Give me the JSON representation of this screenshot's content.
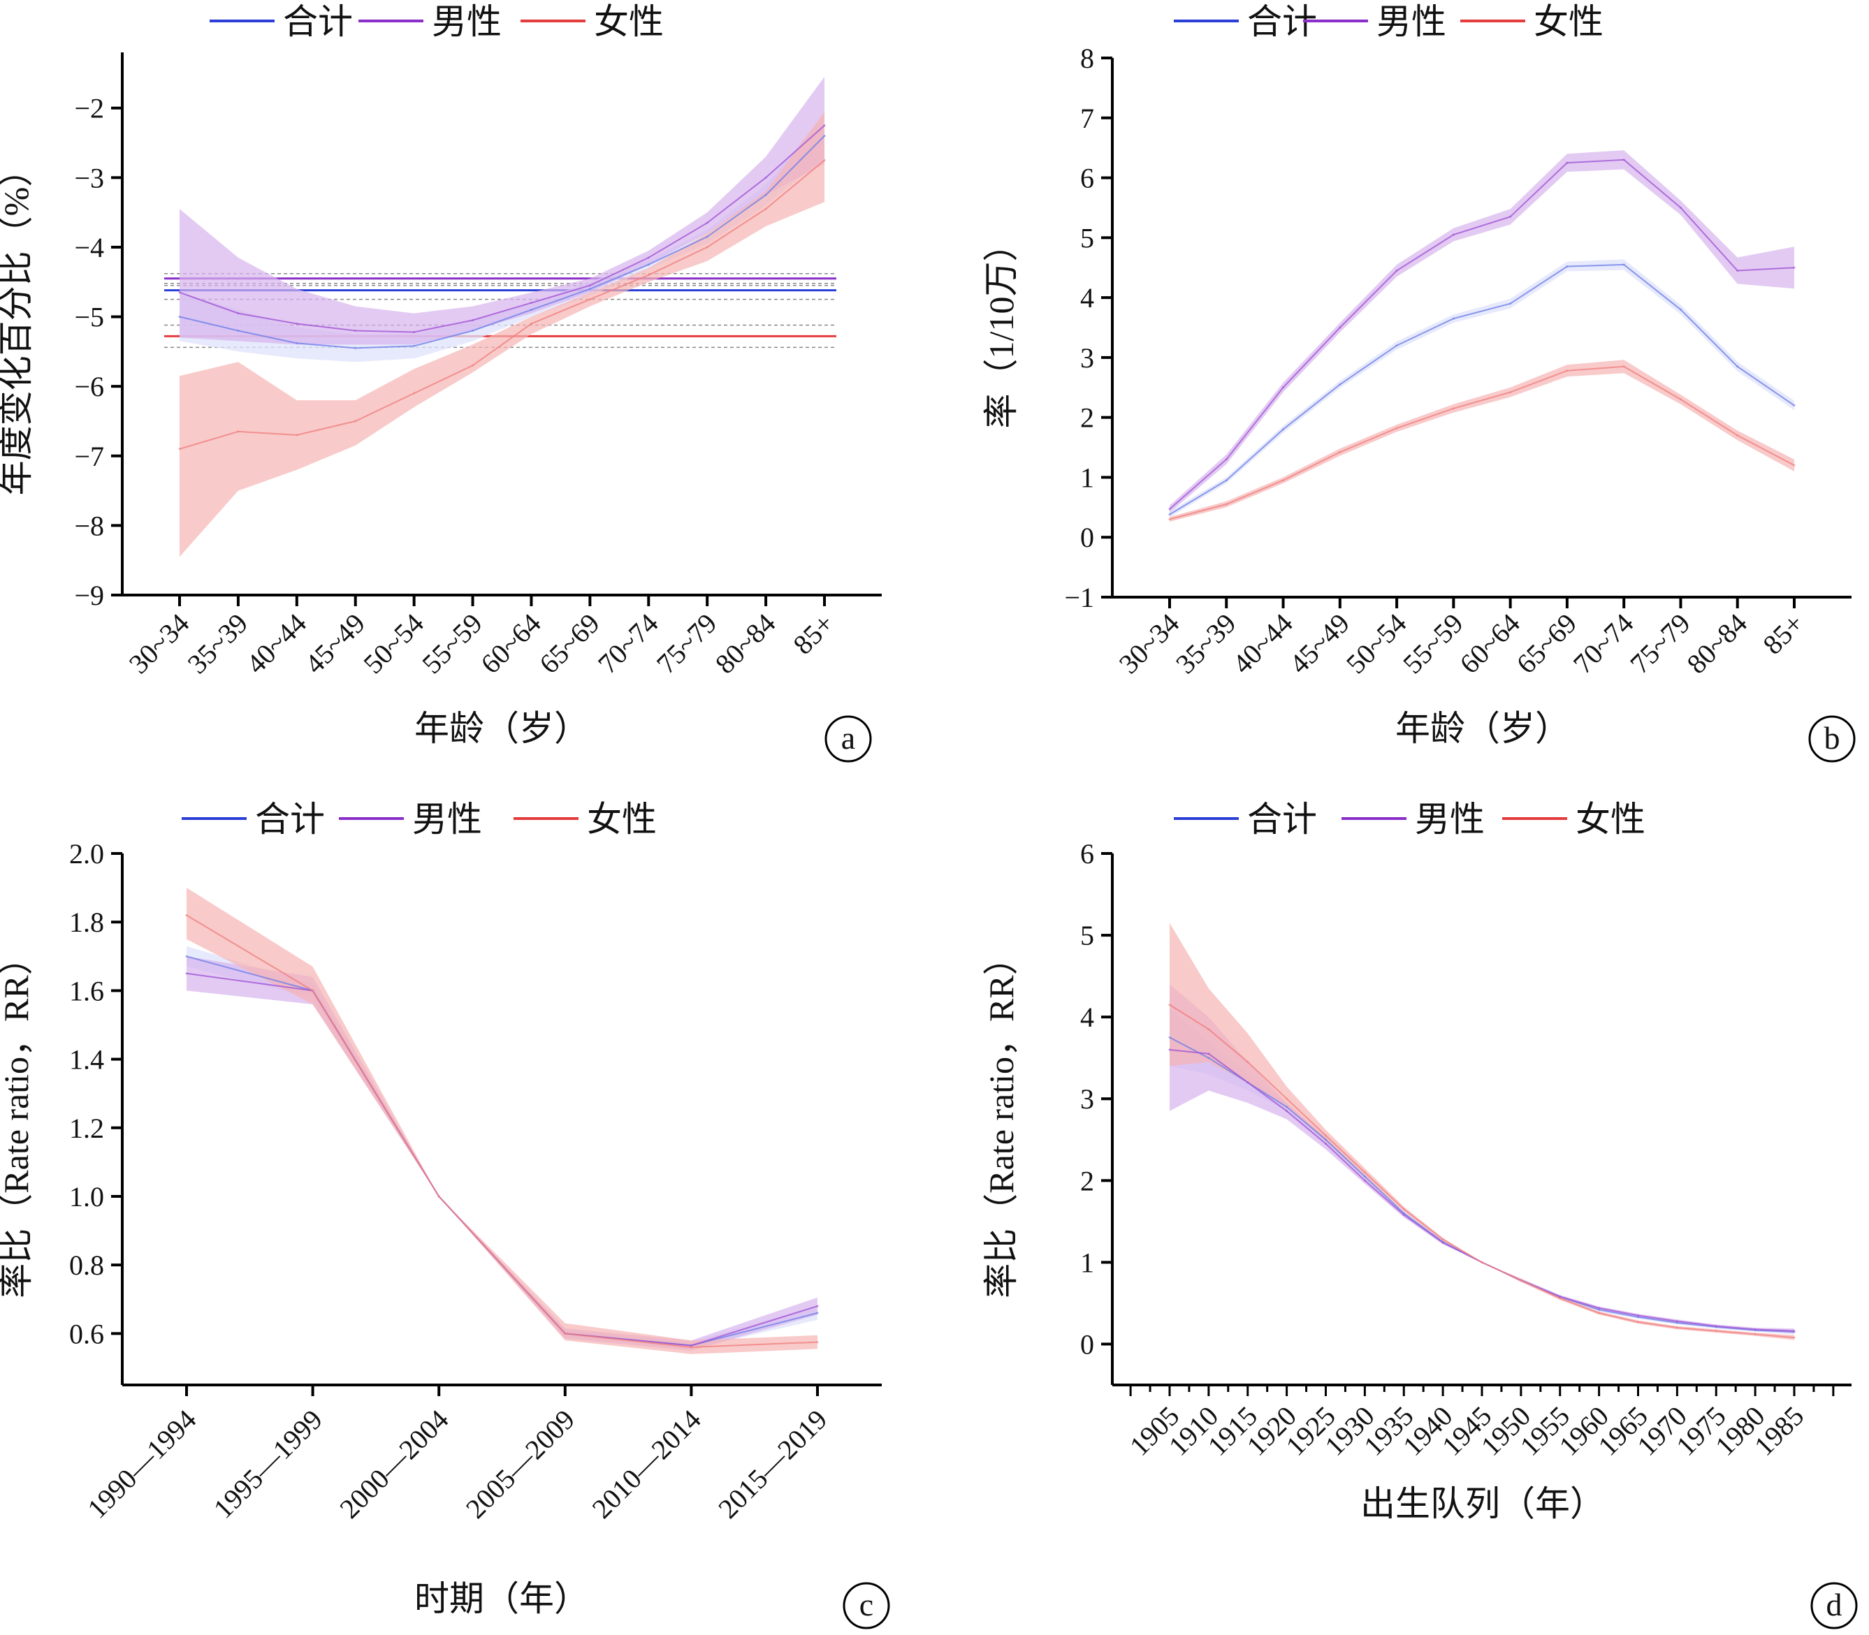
{
  "colors": {
    "total": "#6f7fe8",
    "total_strong": "#2b3fd6",
    "male": "#a055d6",
    "male_strong": "#8a2fc9",
    "female": "#f08080",
    "female_strong": "#e43c3c",
    "total_band": "#dfe3fb",
    "male_band": "#d7b3ee",
    "female_band": "#f7b3b3",
    "axis": "#000000"
  },
  "chart_data": [
    {
      "id": "a",
      "type": "line",
      "panel_label": "a",
      "xlabel": "年龄（岁）",
      "ylabel": "年度变化百分比（%）",
      "ylim": [
        -9,
        -1.2
      ],
      "yticks": [
        -9,
        -8,
        -7,
        -6,
        -5,
        -4,
        -3,
        -2
      ],
      "ytick_labels": [
        "−9",
        "−8",
        "−7",
        "−6",
        "−5",
        "−4",
        "−3",
        "−2"
      ],
      "categories": [
        "30~34",
        "35~39",
        "40~44",
        "45~49",
        "50~54",
        "55~59",
        "60~64",
        "65~69",
        "70~74",
        "75~79",
        "80~84",
        "85+"
      ],
      "legend": [
        {
          "key": "total",
          "label": "合计"
        },
        {
          "key": "male",
          "label": "男性"
        },
        {
          "key": "female",
          "label": "女性"
        }
      ],
      "series": [
        {
          "key": "total",
          "name": "合计",
          "values": [
            -5.0,
            -5.2,
            -5.38,
            -5.45,
            -5.42,
            -5.2,
            -4.9,
            -4.6,
            -4.25,
            -3.85,
            -3.25,
            -2.4
          ],
          "lower": [
            -5.35,
            -5.5,
            -5.6,
            -5.65,
            -5.6,
            -5.35,
            -5.0,
            -4.7,
            -4.32,
            -3.95,
            -3.4,
            -2.7
          ],
          "upper": [
            -4.65,
            -4.9,
            -5.15,
            -5.25,
            -5.25,
            -5.05,
            -4.8,
            -4.5,
            -4.18,
            -3.75,
            -3.1,
            -2.1
          ]
        },
        {
          "key": "male",
          "name": "男性",
          "values": [
            -4.65,
            -4.95,
            -5.1,
            -5.2,
            -5.22,
            -5.05,
            -4.8,
            -4.55,
            -4.15,
            -3.65,
            -3.0,
            -2.25
          ],
          "lower": [
            -5.3,
            -5.35,
            -5.4,
            -5.4,
            -5.4,
            -5.2,
            -4.95,
            -4.65,
            -4.25,
            -3.8,
            -3.25,
            -2.8
          ],
          "upper": [
            -3.45,
            -4.15,
            -4.6,
            -4.85,
            -4.95,
            -4.85,
            -4.65,
            -4.45,
            -4.05,
            -3.5,
            -2.7,
            -1.55
          ]
        },
        {
          "key": "female",
          "name": "女性",
          "values": [
            -6.9,
            -6.65,
            -6.7,
            -6.5,
            -6.1,
            -5.7,
            -5.1,
            -4.75,
            -4.4,
            -4.0,
            -3.45,
            -2.75
          ],
          "lower": [
            -8.45,
            -7.5,
            -7.2,
            -6.85,
            -6.3,
            -5.8,
            -5.25,
            -4.85,
            -4.5,
            -4.2,
            -3.7,
            -3.35
          ],
          "upper": [
            -5.85,
            -5.65,
            -6.2,
            -6.2,
            -5.75,
            -5.4,
            -5.0,
            -4.65,
            -4.3,
            -3.8,
            -3.2,
            -2.05
          ]
        }
      ],
      "reference_lines": [
        {
          "key": "male",
          "value": -4.45,
          "ci": [
            -4.38,
            -4.52
          ]
        },
        {
          "key": "total",
          "value": -4.62,
          "ci": [
            -4.55,
            -4.75
          ]
        },
        {
          "key": "female",
          "value": -5.28,
          "ci": [
            -5.12,
            -5.44
          ]
        }
      ]
    },
    {
      "id": "b",
      "type": "line",
      "panel_label": "b",
      "xlabel": "年龄（岁）",
      "ylabel": "率（1/10万）",
      "ylim": [
        -1,
        8
      ],
      "yticks": [
        -1,
        0,
        1,
        2,
        3,
        4,
        5,
        6,
        7,
        8
      ],
      "ytick_labels": [
        "−1",
        "0",
        "1",
        "2",
        "3",
        "4",
        "5",
        "6",
        "7",
        "8"
      ],
      "categories": [
        "30~34",
        "35~39",
        "40~44",
        "45~49",
        "50~54",
        "55~59",
        "60~64",
        "65~69",
        "70~74",
        "75~79",
        "80~84",
        "85+"
      ],
      "legend": [
        {
          "key": "total",
          "label": "合计"
        },
        {
          "key": "male",
          "label": "男性"
        },
        {
          "key": "female",
          "label": "女性"
        }
      ],
      "series": [
        {
          "key": "total",
          "name": "合计",
          "values": [
            0.38,
            0.95,
            1.8,
            2.55,
            3.2,
            3.65,
            3.9,
            4.52,
            4.55,
            3.8,
            2.85,
            2.2
          ],
          "lower": [
            0.33,
            0.9,
            1.74,
            2.49,
            3.13,
            3.58,
            3.82,
            4.44,
            4.46,
            3.72,
            2.77,
            2.12
          ],
          "upper": [
            0.43,
            1.0,
            1.86,
            2.61,
            3.27,
            3.72,
            3.98,
            4.6,
            4.64,
            3.88,
            2.93,
            2.28
          ]
        },
        {
          "key": "male",
          "name": "男性",
          "values": [
            0.47,
            1.3,
            2.5,
            3.5,
            4.45,
            5.05,
            5.35,
            6.25,
            6.3,
            5.5,
            4.45,
            4.5
          ],
          "lower": [
            0.41,
            1.22,
            2.42,
            3.42,
            4.35,
            4.94,
            5.22,
            6.1,
            6.14,
            5.38,
            4.23,
            4.15
          ],
          "upper": [
            0.53,
            1.38,
            2.58,
            3.58,
            4.55,
            5.16,
            5.48,
            6.4,
            6.46,
            5.62,
            4.67,
            4.85
          ]
        },
        {
          "key": "female",
          "name": "女性",
          "values": [
            0.3,
            0.55,
            0.95,
            1.42,
            1.82,
            2.15,
            2.42,
            2.78,
            2.85,
            2.3,
            1.7,
            1.2
          ],
          "lower": [
            0.26,
            0.5,
            0.9,
            1.36,
            1.76,
            2.08,
            2.34,
            2.68,
            2.74,
            2.22,
            1.62,
            1.1
          ],
          "upper": [
            0.34,
            0.6,
            1.0,
            1.48,
            1.88,
            2.22,
            2.5,
            2.88,
            2.96,
            2.38,
            1.78,
            1.3
          ]
        }
      ]
    },
    {
      "id": "c",
      "type": "line",
      "panel_label": "c",
      "xlabel": "时期（年）",
      "ylabel": "率比（Rate ratio，RR）",
      "ylim": [
        0.45,
        2.0
      ],
      "yticks": [
        0.6,
        0.8,
        1.0,
        1.2,
        1.4,
        1.6,
        1.8,
        2.0
      ],
      "ytick_labels": [
        "0.6",
        "0.8",
        "1.0",
        "1.2",
        "1.4",
        "1.6",
        "1.8",
        "2.0"
      ],
      "categories": [
        "1990—1994",
        "1995—1999",
        "2000—2004",
        "2005—2009",
        "2010—2014",
        "2015—2019"
      ],
      "legend": [
        {
          "key": "total",
          "label": "合计"
        },
        {
          "key": "male",
          "label": "男性"
        },
        {
          "key": "female",
          "label": "女性"
        }
      ],
      "series": [
        {
          "key": "total",
          "name": "合计",
          "values": [
            1.7,
            1.6,
            1.0,
            0.6,
            0.565,
            0.66
          ],
          "lower": [
            1.67,
            1.58,
            1.0,
            0.59,
            0.555,
            0.64
          ],
          "upper": [
            1.73,
            1.62,
            1.0,
            0.61,
            0.575,
            0.68
          ]
        },
        {
          "key": "male",
          "name": "男性",
          "values": [
            1.65,
            1.6,
            1.0,
            0.6,
            0.565,
            0.68
          ],
          "lower": [
            1.6,
            1.56,
            1.0,
            0.585,
            0.55,
            0.655
          ],
          "upper": [
            1.7,
            1.64,
            1.0,
            0.615,
            0.58,
            0.705
          ]
        },
        {
          "key": "female",
          "name": "女性",
          "values": [
            1.82,
            1.6,
            1.0,
            0.6,
            0.56,
            0.575
          ],
          "lower": [
            1.75,
            1.56,
            1.0,
            0.58,
            0.54,
            0.555
          ],
          "upper": [
            1.9,
            1.67,
            1.0,
            0.63,
            0.58,
            0.595
          ]
        }
      ]
    },
    {
      "id": "d",
      "type": "line",
      "panel_label": "d",
      "xlabel": "出生队列（年）",
      "ylabel": "率比（Rate ratio，RR）",
      "ylim": [
        -0.5,
        6
      ],
      "yticks": [
        0,
        1,
        2,
        3,
        4,
        5,
        6
      ],
      "ytick_labels": [
        "0",
        "1",
        "2",
        "3",
        "4",
        "5",
        "6"
      ],
      "categories": [
        "1905",
        "1910",
        "1915",
        "1920",
        "1925",
        "1930",
        "1935",
        "1940",
        "1945",
        "1950",
        "1955",
        "1960",
        "1965",
        "1970",
        "1975",
        "1980",
        "1985"
      ],
      "legend": [
        {
          "key": "total",
          "label": "合计"
        },
        {
          "key": "male",
          "label": "男性"
        },
        {
          "key": "female",
          "label": "女性"
        }
      ],
      "series": [
        {
          "key": "total",
          "name": "合计",
          "values": [
            3.75,
            3.5,
            3.2,
            2.9,
            2.5,
            2.05,
            1.6,
            1.25,
            1.0,
            0.78,
            0.58,
            0.42,
            0.33,
            0.26,
            0.21,
            0.17,
            0.15
          ],
          "lower": [
            3.4,
            3.3,
            3.1,
            2.85,
            2.46,
            2.02,
            1.58,
            1.24,
            1.0,
            0.76,
            0.56,
            0.4,
            0.31,
            0.24,
            0.19,
            0.15,
            0.12
          ],
          "upper": [
            4.1,
            3.7,
            3.3,
            2.95,
            2.54,
            2.08,
            1.62,
            1.26,
            1.0,
            0.8,
            0.6,
            0.44,
            0.35,
            0.28,
            0.23,
            0.19,
            0.18
          ]
        },
        {
          "key": "male",
          "name": "男性",
          "values": [
            3.6,
            3.55,
            3.2,
            2.85,
            2.45,
            2.0,
            1.58,
            1.24,
            1.0,
            0.78,
            0.58,
            0.44,
            0.35,
            0.28,
            0.22,
            0.18,
            0.16
          ],
          "lower": [
            2.85,
            3.1,
            2.95,
            2.75,
            2.38,
            1.96,
            1.55,
            1.22,
            1.0,
            0.76,
            0.56,
            0.42,
            0.33,
            0.26,
            0.2,
            0.16,
            0.13
          ],
          "upper": [
            4.4,
            4.0,
            3.45,
            2.95,
            2.52,
            2.04,
            1.61,
            1.26,
            1.0,
            0.8,
            0.6,
            0.46,
            0.37,
            0.3,
            0.24,
            0.2,
            0.19
          ]
        },
        {
          "key": "female",
          "name": "女性",
          "values": [
            4.15,
            3.85,
            3.45,
            3.0,
            2.55,
            2.1,
            1.65,
            1.28,
            1.0,
            0.78,
            0.56,
            0.38,
            0.27,
            0.2,
            0.16,
            0.12,
            0.08
          ],
          "lower": [
            3.4,
            3.45,
            3.2,
            2.9,
            2.48,
            2.05,
            1.62,
            1.26,
            1.0,
            0.76,
            0.54,
            0.36,
            0.25,
            0.18,
            0.14,
            0.1,
            0.05
          ],
          "upper": [
            5.15,
            4.35,
            3.8,
            3.15,
            2.62,
            2.15,
            1.68,
            1.3,
            1.0,
            0.8,
            0.58,
            0.4,
            0.29,
            0.22,
            0.18,
            0.14,
            0.11
          ]
        }
      ]
    }
  ]
}
